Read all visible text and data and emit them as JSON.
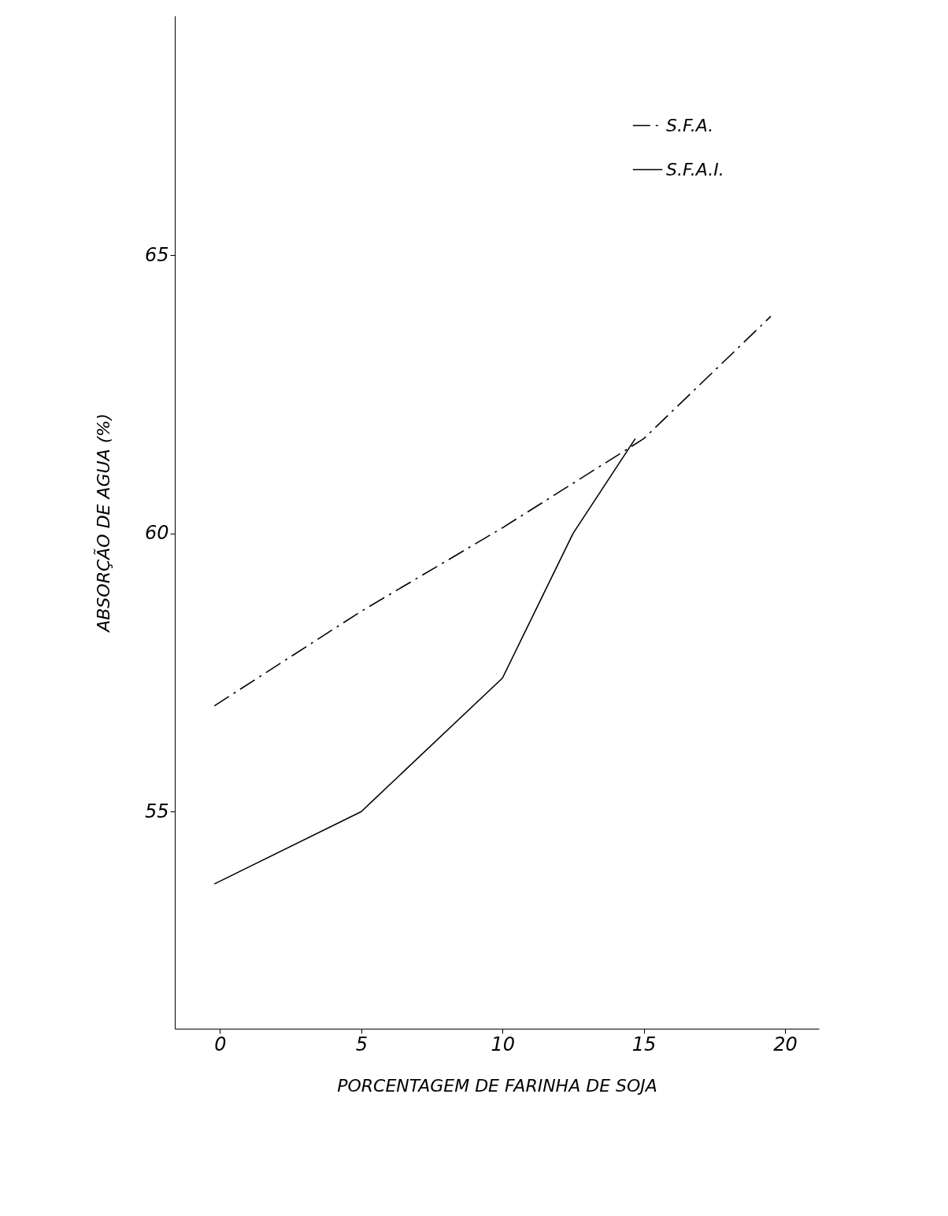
{
  "chart_data": {
    "type": "line",
    "xlabel": "PORCENTAGEM DE FARINHA DE SOJA",
    "ylabel": "ABSORÇÃO DE AGUA (%)",
    "xlim": [
      -1.6,
      21.2
    ],
    "ylim": [
      51.1,
      69.3
    ],
    "xticks": [
      0,
      5,
      10,
      15,
      20
    ],
    "yticks": [
      55,
      60,
      65
    ],
    "grid": false,
    "legend": "top right",
    "marker": "none",
    "series": [
      {
        "name": "S.F.A.",
        "color": "#000000",
        "line_style": "dashed",
        "x": [
          -0.2,
          5,
          10,
          15,
          19.5
        ],
        "values": [
          56.9,
          58.6,
          60.1,
          61.7,
          63.9
        ]
      },
      {
        "name": "S.F.A.I.",
        "color": "#000000",
        "line_style": "solid",
        "x": [
          -0.2,
          5,
          10,
          12.5,
          14.7
        ],
        "values": [
          53.7,
          55.0,
          57.4,
          60.0,
          61.7
        ]
      }
    ]
  }
}
